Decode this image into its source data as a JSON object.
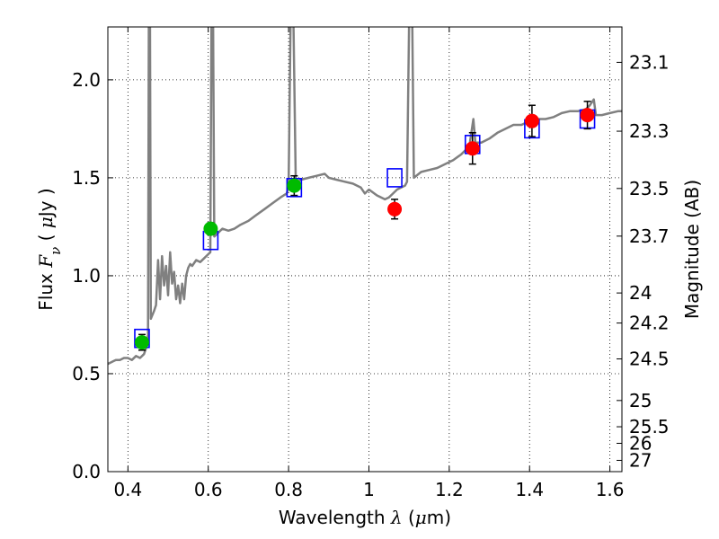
{
  "chart_data": {
    "type": "scatter",
    "xlabel": {
      "prefix": "Wavelength  ",
      "symbol": "λ",
      "mid": " (",
      "unit_symbol": "μ",
      "suffix": "m)"
    },
    "ylabel": {
      "prefix": "Flux  ",
      "symbol": "F",
      "subscript": "ν",
      "mid": "  ( ",
      "unit_symbol": "μ",
      "suffix": "Jy )"
    },
    "y2label": "Magnitude (AB)",
    "xlim": [
      0.35,
      1.63
    ],
    "ylim": [
      0.0,
      2.27
    ],
    "grid": true,
    "xticks": [
      {
        "value": 0.4,
        "label": "0.4"
      },
      {
        "value": 0.6,
        "label": "0.6"
      },
      {
        "value": 0.8,
        "label": "0.8"
      },
      {
        "value": 1.0,
        "label": "1"
      },
      {
        "value": 1.2,
        "label": "1.2"
      },
      {
        "value": 1.4,
        "label": "1.4"
      },
      {
        "value": 1.6,
        "label": "1.6"
      }
    ],
    "yticks": [
      {
        "value": 0.0,
        "label": "0.0"
      },
      {
        "value": 0.5,
        "label": "0.5"
      },
      {
        "value": 1.0,
        "label": "1.0"
      },
      {
        "value": 1.5,
        "label": "1.5"
      },
      {
        "value": 2.0,
        "label": "2.0"
      }
    ],
    "y2ticks": [
      {
        "value": 23.1,
        "label": "23.1"
      },
      {
        "value": 23.3,
        "label": "23.3"
      },
      {
        "value": 23.5,
        "label": "23.5"
      },
      {
        "value": 23.7,
        "label": "23.7"
      },
      {
        "value": 24.0,
        "label": "24"
      },
      {
        "value": 24.2,
        "label": "24.2"
      },
      {
        "value": 24.5,
        "label": "24.5"
      },
      {
        "value": 25.0,
        "label": "25"
      },
      {
        "value": 25.5,
        "label": "25.5"
      },
      {
        "value": 26.0,
        "label": "26"
      },
      {
        "value": 27.0,
        "label": "27"
      }
    ],
    "model_spectrum": {
      "color": "#808080",
      "points": [
        [
          0.35,
          0.55
        ],
        [
          0.36,
          0.56
        ],
        [
          0.37,
          0.57
        ],
        [
          0.38,
          0.57
        ],
        [
          0.39,
          0.58
        ],
        [
          0.4,
          0.58
        ],
        [
          0.41,
          0.57
        ],
        [
          0.42,
          0.59
        ],
        [
          0.43,
          0.58
        ],
        [
          0.44,
          0.6
        ],
        [
          0.445,
          0.63
        ],
        [
          0.45,
          0.7
        ],
        [
          0.452,
          2.3
        ],
        [
          0.455,
          2.3
        ],
        [
          0.457,
          0.78
        ],
        [
          0.465,
          0.82
        ],
        [
          0.47,
          0.85
        ],
        [
          0.475,
          1.08
        ],
        [
          0.48,
          0.88
        ],
        [
          0.485,
          1.1
        ],
        [
          0.49,
          0.95
        ],
        [
          0.495,
          1.05
        ],
        [
          0.5,
          0.9
        ],
        [
          0.505,
          1.12
        ],
        [
          0.51,
          0.96
        ],
        [
          0.515,
          1.02
        ],
        [
          0.52,
          0.88
        ],
        [
          0.525,
          0.95
        ],
        [
          0.53,
          0.86
        ],
        [
          0.535,
          0.96
        ],
        [
          0.54,
          0.88
        ],
        [
          0.545,
          1.0
        ],
        [
          0.55,
          1.04
        ],
        [
          0.555,
          1.06
        ],
        [
          0.56,
          1.05
        ],
        [
          0.57,
          1.08
        ],
        [
          0.58,
          1.07
        ],
        [
          0.59,
          1.09
        ],
        [
          0.6,
          1.11
        ],
        [
          0.605,
          1.12
        ],
        [
          0.608,
          2.3
        ],
        [
          0.612,
          2.3
        ],
        [
          0.615,
          1.2
        ],
        [
          0.625,
          1.22
        ],
        [
          0.635,
          1.24
        ],
        [
          0.65,
          1.23
        ],
        [
          0.665,
          1.24
        ],
        [
          0.68,
          1.26
        ],
        [
          0.7,
          1.28
        ],
        [
          0.72,
          1.31
        ],
        [
          0.74,
          1.34
        ],
        [
          0.76,
          1.37
        ],
        [
          0.78,
          1.4
        ],
        [
          0.795,
          1.42
        ],
        [
          0.8,
          1.45
        ],
        [
          0.805,
          2.3
        ],
        [
          0.812,
          2.3
        ],
        [
          0.818,
          1.47
        ],
        [
          0.83,
          1.49
        ],
        [
          0.85,
          1.5
        ],
        [
          0.87,
          1.51
        ],
        [
          0.89,
          1.52
        ],
        [
          0.9,
          1.5
        ],
        [
          0.92,
          1.49
        ],
        [
          0.94,
          1.48
        ],
        [
          0.96,
          1.47
        ],
        [
          0.98,
          1.45
        ],
        [
          0.99,
          1.42
        ],
        [
          1.0,
          1.44
        ],
        [
          1.02,
          1.41
        ],
        [
          1.04,
          1.39
        ],
        [
          1.05,
          1.4
        ],
        [
          1.06,
          1.42
        ],
        [
          1.07,
          1.44
        ],
        [
          1.08,
          1.45
        ],
        [
          1.09,
          1.46
        ],
        [
          1.095,
          1.48
        ],
        [
          1.1,
          2.3
        ],
        [
          1.108,
          2.3
        ],
        [
          1.112,
          1.5
        ],
        [
          1.13,
          1.53
        ],
        [
          1.15,
          1.54
        ],
        [
          1.17,
          1.55
        ],
        [
          1.19,
          1.57
        ],
        [
          1.21,
          1.59
        ],
        [
          1.23,
          1.62
        ],
        [
          1.25,
          1.66
        ],
        [
          1.26,
          1.8
        ],
        [
          1.265,
          1.68
        ],
        [
          1.28,
          1.68
        ],
        [
          1.3,
          1.7
        ],
        [
          1.32,
          1.73
        ],
        [
          1.34,
          1.75
        ],
        [
          1.36,
          1.77
        ],
        [
          1.38,
          1.77
        ],
        [
          1.4,
          1.79
        ],
        [
          1.42,
          1.8
        ],
        [
          1.44,
          1.8
        ],
        [
          1.46,
          1.81
        ],
        [
          1.48,
          1.83
        ],
        [
          1.5,
          1.84
        ],
        [
          1.52,
          1.84
        ],
        [
          1.54,
          1.85
        ],
        [
          1.55,
          1.87
        ],
        [
          1.56,
          1.9
        ],
        [
          1.565,
          1.82
        ],
        [
          1.58,
          1.82
        ],
        [
          1.6,
          1.83
        ],
        [
          1.62,
          1.84
        ],
        [
          1.63,
          1.84
        ]
      ]
    },
    "model_photometry": {
      "marker": "open-square",
      "color": "#0000ff",
      "points": [
        {
          "x": 0.435,
          "y": 0.68
        },
        {
          "x": 0.606,
          "y": 1.18
        },
        {
          "x": 0.814,
          "y": 1.45
        },
        {
          "x": 1.064,
          "y": 1.5
        },
        {
          "x": 1.258,
          "y": 1.67
        },
        {
          "x": 1.406,
          "y": 1.75
        },
        {
          "x": 1.544,
          "y": 1.8
        }
      ]
    },
    "observed_optical": {
      "marker": "filled-circle",
      "color": "#00bb00",
      "points": [
        {
          "x": 0.435,
          "y": 0.66,
          "err": 0.04
        },
        {
          "x": 0.606,
          "y": 1.24,
          "err": 0.03
        },
        {
          "x": 0.814,
          "y": 1.46,
          "err": 0.05
        }
      ]
    },
    "observed_nir": {
      "marker": "filled-circle",
      "color": "#ff0000",
      "points": [
        {
          "x": 1.064,
          "y": 1.34,
          "err": 0.05
        },
        {
          "x": 1.258,
          "y": 1.65,
          "err": 0.08
        },
        {
          "x": 1.406,
          "y": 1.79,
          "err": 0.08
        },
        {
          "x": 1.544,
          "y": 1.82,
          "err": 0.07
        }
      ]
    }
  }
}
